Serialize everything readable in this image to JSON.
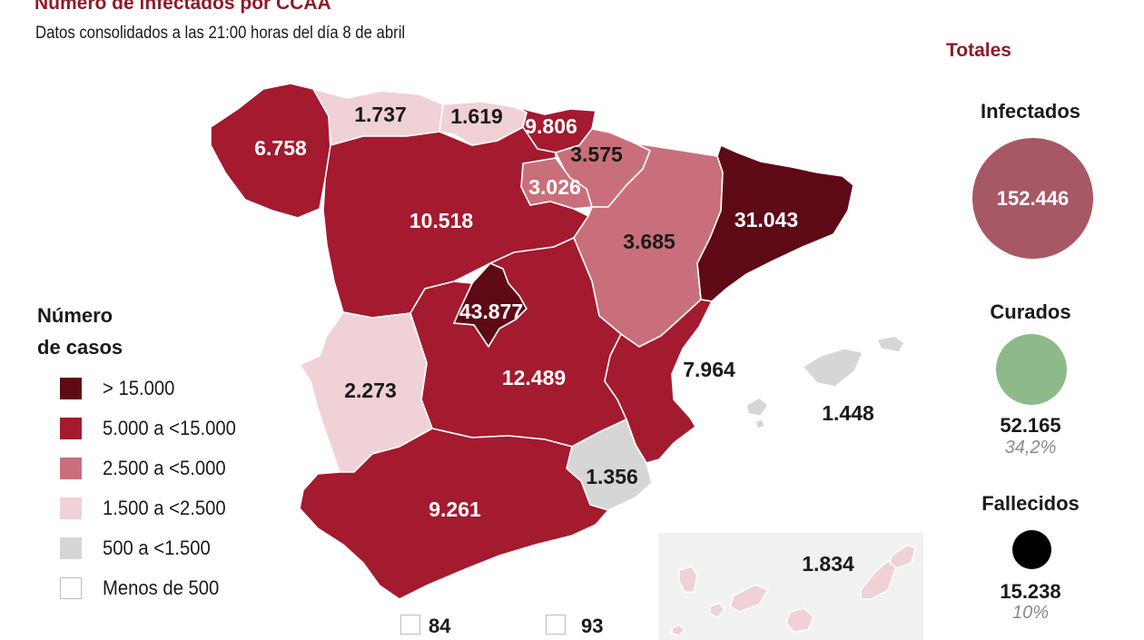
{
  "header": {
    "title": "Número de infectados por CCAA",
    "subtitle": "Datos consolidados a las 21:00 horas del día 8 de abril"
  },
  "colors": {
    "gt15000": "#5e0a16",
    "5000_15000": "#a41a2e",
    "2500_5000": "#c96f7b",
    "1500_2500": "#f0d1d5",
    "500_1500": "#d6d6d6",
    "lt500": "#ffffff",
    "accent": "#8e1b2b"
  },
  "legend": {
    "title": "Número\nde casos",
    "items": [
      {
        "label": "> 15.000",
        "color": "#5e0a16"
      },
      {
        "label": "5.000 a <15.000",
        "color": "#a41a2e"
      },
      {
        "label": "2.500 a <5.000",
        "color": "#c96f7b"
      },
      {
        "label": "1.500 a <2.500",
        "color": "#f0d1d5"
      },
      {
        "label": "500 a <1.500",
        "color": "#d6d6d6"
      },
      {
        "label": "Menos de 500",
        "color": "#ffffff"
      }
    ]
  },
  "regions": [
    {
      "id": "galicia",
      "value": "6.758",
      "color": "#a41a2e"
    },
    {
      "id": "asturias",
      "value": "1.737",
      "color": "#f0d1d5"
    },
    {
      "id": "cantabria",
      "value": "1.619",
      "color": "#f0d1d5"
    },
    {
      "id": "pais-vasco",
      "value": "9.806",
      "color": "#a41a2e"
    },
    {
      "id": "navarra",
      "value": "3.575",
      "color": "#c96f7b"
    },
    {
      "id": "la-rioja",
      "value": "3.026",
      "color": "#c96f7b"
    },
    {
      "id": "castilla-leon",
      "value": "10.518",
      "color": "#a41a2e"
    },
    {
      "id": "aragon",
      "value": "3.685",
      "color": "#c96f7b"
    },
    {
      "id": "cataluna",
      "value": "31.043",
      "color": "#5e0a16"
    },
    {
      "id": "madrid",
      "value": "43.877",
      "color": "#5e0a16"
    },
    {
      "id": "castilla-la-mancha",
      "value": "12.489",
      "color": "#a41a2e"
    },
    {
      "id": "extremadura",
      "value": "2.273",
      "color": "#f0d1d5"
    },
    {
      "id": "comunidad-valenciana",
      "value": "7.964",
      "color": "#a41a2e"
    },
    {
      "id": "baleares",
      "value": "1.448",
      "color": "#d6d6d6"
    },
    {
      "id": "murcia",
      "value": "1.356",
      "color": "#d6d6d6"
    },
    {
      "id": "andalucia",
      "value": "9.261",
      "color": "#a41a2e"
    },
    {
      "id": "canarias",
      "value": "1.834",
      "color": "#f0d1d5"
    },
    {
      "id": "ceuta",
      "value": "84",
      "color": "#ffffff"
    },
    {
      "id": "melilla",
      "value": "93",
      "color": "#ffffff"
    }
  ],
  "totals": {
    "heading": "Totales",
    "infectados": {
      "label": "Infectados",
      "value": "152.446",
      "color": "#a85865"
    },
    "curados": {
      "label": "Curados",
      "value": "52.165",
      "pct": "34,2%",
      "color": "#8db98b"
    },
    "fallecidos": {
      "label": "Fallecidos",
      "value": "15.238",
      "pct": "10%",
      "color": "#000000"
    }
  }
}
